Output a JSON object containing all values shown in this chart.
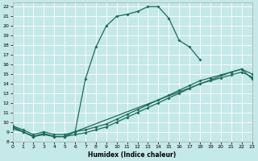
{
  "xlabel": "Humidex (Indice chaleur)",
  "bg_color": "#c5e8e8",
  "grid_color": "#ffffff",
  "line_color": "#1a6b5a",
  "xlim": [
    0,
    23
  ],
  "ylim": [
    8,
    22.4
  ],
  "xticks": [
    0,
    1,
    2,
    3,
    4,
    5,
    6,
    7,
    8,
    9,
    10,
    11,
    12,
    13,
    14,
    15,
    16,
    17,
    18,
    19,
    20,
    21,
    22,
    23
  ],
  "yticks": [
    8,
    9,
    10,
    11,
    12,
    13,
    14,
    15,
    16,
    17,
    18,
    19,
    20,
    21,
    22
  ],
  "line1_x": [
    0,
    1,
    2,
    3,
    4,
    5,
    6,
    7,
    8,
    9,
    10,
    11,
    12,
    13,
    14,
    15,
    16,
    17,
    18
  ],
  "line1_y": [
    9.5,
    9.0,
    8.5,
    8.8,
    8.5,
    8.5,
    9.0,
    14.5,
    17.8,
    20.0,
    21.0,
    21.2,
    21.5,
    22.0,
    22.0,
    20.8,
    18.5,
    17.8,
    16.5
  ],
  "line2_x": [
    0,
    1,
    2,
    3,
    4,
    5,
    6,
    21,
    22,
    23
  ],
  "line2_y": [
    9.5,
    9.0,
    8.5,
    8.8,
    8.5,
    8.5,
    9.0,
    15.2,
    15.5,
    14.5
  ],
  "line3_x": [
    0,
    1,
    2,
    3,
    4,
    5,
    6,
    7,
    8,
    9,
    10,
    11,
    12,
    13,
    14,
    15,
    16,
    17,
    18,
    19,
    20,
    21,
    22,
    23
  ],
  "line3_y": [
    9.3,
    9.0,
    8.5,
    8.7,
    8.5,
    8.5,
    8.7,
    8.9,
    9.2,
    9.5,
    10.0,
    10.5,
    11.0,
    11.5,
    12.0,
    12.5,
    13.0,
    13.5,
    14.0,
    14.3,
    14.6,
    14.9,
    15.2,
    14.7
  ],
  "line4_x": [
    0,
    1,
    2,
    3,
    4,
    5,
    6,
    7,
    8,
    9,
    10,
    11,
    12,
    13,
    14,
    15,
    16,
    17,
    18,
    19,
    20,
    21,
    22,
    23
  ],
  "line4_y": [
    9.6,
    9.2,
    8.7,
    9.0,
    8.7,
    8.7,
    9.0,
    9.2,
    9.5,
    9.8,
    10.3,
    10.8,
    11.3,
    11.8,
    12.3,
    12.8,
    13.3,
    13.8,
    14.3,
    14.6,
    14.9,
    15.2,
    15.5,
    15.0
  ]
}
